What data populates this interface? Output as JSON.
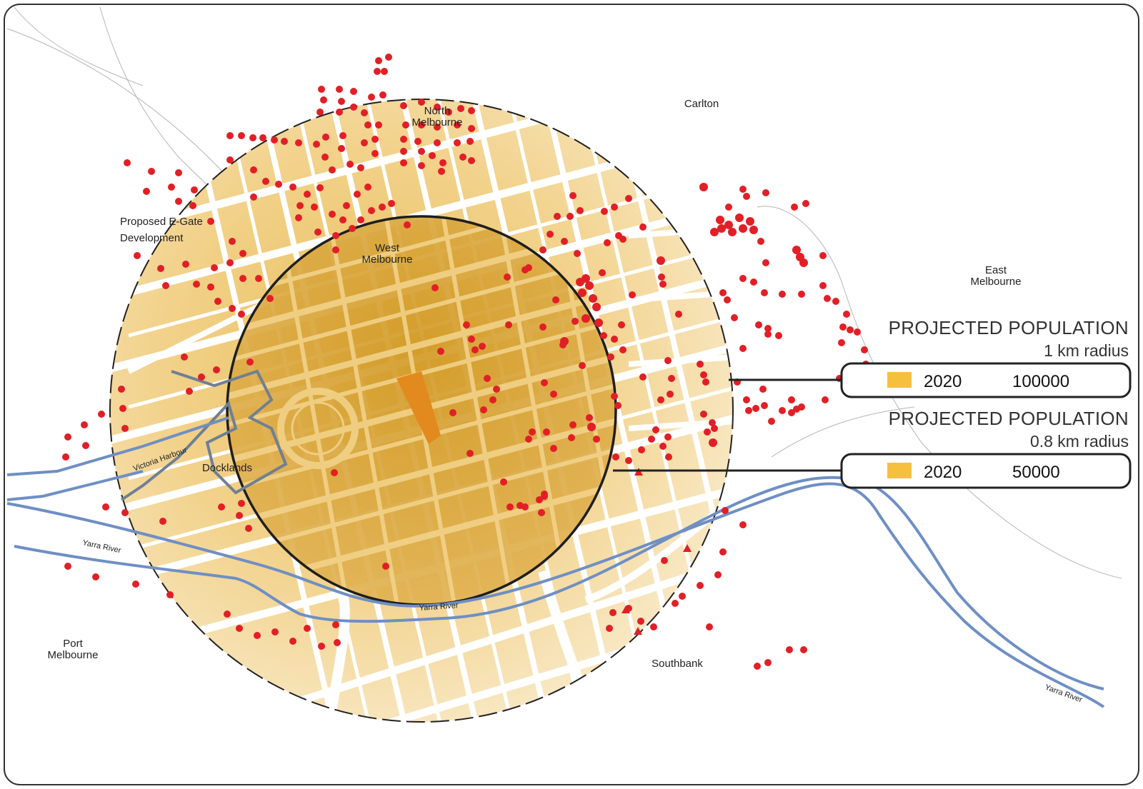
{
  "colors": {
    "frame": "#333333",
    "outer_ring_fill": "#f4dca2",
    "inner_ring_fill": "#d9a331",
    "site_fill": "#e28a1e",
    "street": "#ffffff",
    "river": "#6f8fc4",
    "dot": "#e21f26",
    "legend_swatch": "#f6c03f",
    "rail": "#aaaaaa"
  },
  "places": {
    "north_melbourne_1": "North",
    "north_melbourne_2": "Melbourne",
    "carlton": "Carlton",
    "egate_1": "Proposed E-Gate",
    "egate_2": "Development",
    "west_melbourne_1": "West",
    "west_melbourne_2": "Melbourne",
    "east_melbourne_1": "East",
    "east_melbourne_2": "Melbourne",
    "docklands": "Docklands",
    "port_melbourne_1": "Port",
    "port_melbourne_2": "Melbourne",
    "southbank": "Southbank"
  },
  "water_labels": {
    "victoria_harbour": "Victoria Harbour",
    "yarra_river_west": "Yarra River",
    "yarra_river_centre": "Yarra River",
    "yarra_river_east": "Yarra River"
  },
  "legend": [
    {
      "title": "PROJECTED POPULATION",
      "radius": "1 km radius",
      "year": "2020",
      "value": "100000",
      "icon": "color-swatch-icon"
    },
    {
      "title": "PROJECTED POPULATION",
      "radius": "0.8 km radius",
      "year": "2020",
      "value": "50000",
      "icon": "color-swatch-icon"
    }
  ]
}
